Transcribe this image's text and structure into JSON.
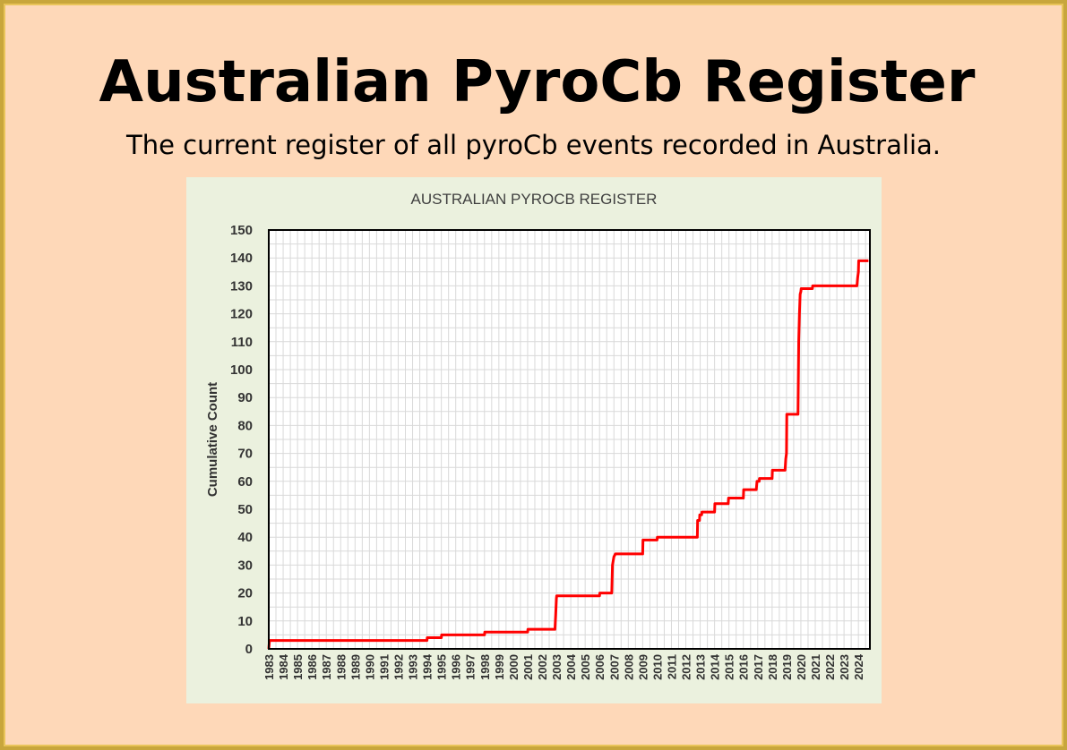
{
  "page": {
    "title": "Australian PyroCb Register",
    "subtitle": "The current register of all pyroCb events recorded in Australia."
  },
  "colors": {
    "background": "#fed8b8",
    "border": "#c8a63c",
    "chart_panel": "#ebf1de",
    "plot_area": "#ffffff",
    "gridline": "#d9d9d9",
    "series_line": "#ff0000"
  },
  "chart_data": {
    "type": "line",
    "title": "AUSTRALIAN PYROCB REGISTER",
    "xlabel": "",
    "ylabel": "Cumulative Count",
    "xlim": [
      1983,
      2024.8
    ],
    "ylim": [
      0,
      150
    ],
    "y_ticks": [
      0,
      10,
      20,
      30,
      40,
      50,
      60,
      70,
      80,
      90,
      100,
      110,
      120,
      130,
      140,
      150
    ],
    "x_tick_labels": [
      "1983",
      "1984",
      "1985",
      "1986",
      "1987",
      "1988",
      "1989",
      "1990",
      "1991",
      "1992",
      "1993",
      "1994",
      "1995",
      "1996",
      "1997",
      "1998",
      "1999",
      "2000",
      "2001",
      "2002",
      "2003",
      "2004",
      "2005",
      "2006",
      "2007",
      "2008",
      "2009",
      "2010",
      "2011",
      "2012",
      "2013",
      "2014",
      "2015",
      "2016",
      "2017",
      "2018",
      "2019",
      "2020",
      "2021",
      "2022",
      "2023",
      "2024"
    ],
    "grid": true,
    "legend": "none",
    "series": [
      {
        "x": [
          1983.0,
          1983.05,
          1994.0,
          1994.02,
          1995.0,
          1995.02,
          1998.0,
          1998.02,
          2001.0,
          2001.02,
          2002.9,
          2002.95,
          2003.0,
          2003.02,
          2006.0,
          2006.02,
          2006.85,
          2006.9,
          2007.0,
          2007.1,
          2009.0,
          2009.02,
          2010.0,
          2010.02,
          2012.8,
          2012.82,
          2012.95,
          2012.97,
          2013.1,
          2013.12,
          2014.0,
          2014.02,
          2014.95,
          2014.97,
          2016.0,
          2016.02,
          2016.9,
          2016.95,
          2017.1,
          2017.12,
          2018.0,
          2018.02,
          2018.9,
          2018.95,
          2019.0,
          2019.02,
          2019.8,
          2019.85,
          2019.9,
          2019.95,
          2020.0,
          2020.02,
          2020.8,
          2020.82,
          2023.9,
          2023.95,
          2024.0,
          2024.02,
          2024.7
        ],
        "y": [
          0,
          3,
          3,
          4,
          4,
          5,
          5,
          6,
          6,
          7,
          7,
          12,
          18,
          19,
          19,
          20,
          20,
          30,
          33,
          34,
          34,
          39,
          39,
          40,
          40,
          46,
          46,
          48,
          48,
          49,
          49,
          52,
          52,
          54,
          54,
          57,
          57,
          60,
          60,
          61,
          61,
          64,
          64,
          68,
          70,
          84,
          84,
          110,
          120,
          127,
          128,
          129,
          129,
          130,
          130,
          133,
          135,
          139,
          139
        ]
      }
    ]
  }
}
